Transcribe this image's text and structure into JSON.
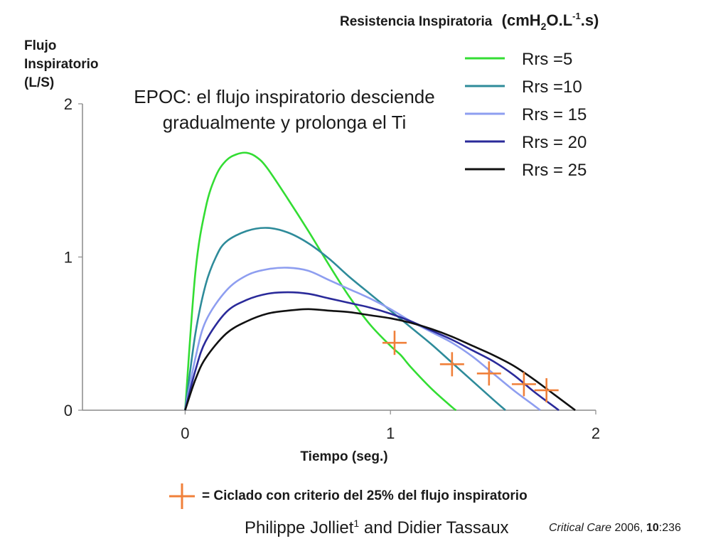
{
  "chart_data": {
    "type": "line",
    "title": "EPOC: el flujo inspiratorio desciende gradualmente y prolonga el Ti",
    "ylabel_lines": [
      "Flujo",
      "Inspiratorio",
      "(L/S)"
    ],
    "xlabel": "Tiempo (seg.)",
    "xlim": [
      -0.5,
      2
    ],
    "ylim": [
      0,
      2
    ],
    "x_ticks": [
      "0",
      "1",
      "2"
    ],
    "y_ticks": [
      "0",
      "1",
      "2"
    ],
    "legend": {
      "title": "Resistencia Inspiratoria",
      "unit_prefix": "(cmH",
      "unit_sub": "2",
      "unit_mid": "O.L",
      "unit_sup": "-1",
      "unit_suffix": ".s)",
      "placement": "top-right"
    },
    "series": [
      {
        "name": "Rrs =5",
        "color": "#33dd33",
        "points": [
          [
            0,
            0
          ],
          [
            0.05,
            0.9
          ],
          [
            0.1,
            1.32
          ],
          [
            0.15,
            1.53
          ],
          [
            0.2,
            1.63
          ],
          [
            0.25,
            1.67
          ],
          [
            0.3,
            1.68
          ],
          [
            0.35,
            1.65
          ],
          [
            0.4,
            1.58
          ],
          [
            0.5,
            1.38
          ],
          [
            0.6,
            1.17
          ],
          [
            0.7,
            0.95
          ],
          [
            0.8,
            0.74
          ],
          [
            0.9,
            0.56
          ],
          [
            1.0,
            0.42
          ],
          [
            1.05,
            0.36
          ],
          [
            1.1,
            0.28
          ],
          [
            1.2,
            0.14
          ],
          [
            1.3,
            0.02
          ],
          [
            1.32,
            0
          ]
        ],
        "cycle_marker": [
          1.02,
          0.44
        ]
      },
      {
        "name": "Rrs =10",
        "color": "#2e8b9a",
        "points": [
          [
            0,
            0
          ],
          [
            0.05,
            0.5
          ],
          [
            0.1,
            0.82
          ],
          [
            0.15,
            1.0
          ],
          [
            0.2,
            1.1
          ],
          [
            0.3,
            1.17
          ],
          [
            0.4,
            1.19
          ],
          [
            0.5,
            1.16
          ],
          [
            0.6,
            1.09
          ],
          [
            0.7,
            0.99
          ],
          [
            0.8,
            0.87
          ],
          [
            0.9,
            0.76
          ],
          [
            1.0,
            0.65
          ],
          [
            1.1,
            0.54
          ],
          [
            1.2,
            0.43
          ],
          [
            1.3,
            0.31
          ],
          [
            1.4,
            0.19
          ],
          [
            1.5,
            0.07
          ],
          [
            1.56,
            0
          ]
        ],
        "cycle_marker": [
          1.3,
          0.3
        ]
      },
      {
        "name": "Rrs = 15",
        "color": "#8e9ef0",
        "points": [
          [
            0,
            0
          ],
          [
            0.05,
            0.34
          ],
          [
            0.1,
            0.58
          ],
          [
            0.2,
            0.78
          ],
          [
            0.3,
            0.88
          ],
          [
            0.4,
            0.92
          ],
          [
            0.5,
            0.93
          ],
          [
            0.6,
            0.91
          ],
          [
            0.7,
            0.85
          ],
          [
            0.8,
            0.79
          ],
          [
            0.9,
            0.73
          ],
          [
            1.0,
            0.66
          ],
          [
            1.1,
            0.58
          ],
          [
            1.2,
            0.51
          ],
          [
            1.3,
            0.44
          ],
          [
            1.4,
            0.35
          ],
          [
            1.5,
            0.24
          ],
          [
            1.6,
            0.13
          ],
          [
            1.7,
            0.03
          ],
          [
            1.73,
            0
          ]
        ],
        "cycle_marker": [
          1.48,
          0.24
        ]
      },
      {
        "name": "Rrs = 20",
        "color": "#2a2a9a",
        "points": [
          [
            0,
            0
          ],
          [
            0.05,
            0.26
          ],
          [
            0.1,
            0.45
          ],
          [
            0.2,
            0.64
          ],
          [
            0.3,
            0.72
          ],
          [
            0.4,
            0.76
          ],
          [
            0.5,
            0.77
          ],
          [
            0.6,
            0.76
          ],
          [
            0.7,
            0.73
          ],
          [
            0.8,
            0.7
          ],
          [
            0.9,
            0.67
          ],
          [
            1.0,
            0.63
          ],
          [
            1.1,
            0.58
          ],
          [
            1.2,
            0.52
          ],
          [
            1.3,
            0.46
          ],
          [
            1.4,
            0.39
          ],
          [
            1.5,
            0.32
          ],
          [
            1.6,
            0.23
          ],
          [
            1.7,
            0.12
          ],
          [
            1.8,
            0.02
          ],
          [
            1.82,
            0
          ]
        ],
        "cycle_marker": [
          1.65,
          0.17
        ]
      },
      {
        "name": "Rrs = 25",
        "color": "#111111",
        "points": [
          [
            0,
            0
          ],
          [
            0.05,
            0.2
          ],
          [
            0.1,
            0.34
          ],
          [
            0.2,
            0.5
          ],
          [
            0.3,
            0.58
          ],
          [
            0.4,
            0.63
          ],
          [
            0.5,
            0.65
          ],
          [
            0.6,
            0.66
          ],
          [
            0.7,
            0.65
          ],
          [
            0.8,
            0.64
          ],
          [
            0.9,
            0.62
          ],
          [
            1.0,
            0.6
          ],
          [
            1.1,
            0.57
          ],
          [
            1.2,
            0.53
          ],
          [
            1.3,
            0.48
          ],
          [
            1.4,
            0.42
          ],
          [
            1.5,
            0.36
          ],
          [
            1.6,
            0.29
          ],
          [
            1.7,
            0.2
          ],
          [
            1.8,
            0.1
          ],
          [
            1.88,
            0.02
          ],
          [
            1.9,
            0
          ]
        ],
        "cycle_marker": [
          1.76,
          0.13
        ]
      }
    ],
    "marker_color": "#f0803a",
    "marker_note": "= Ciclado con criterio del 25% del flujo inspiratorio"
  },
  "citation": {
    "authors_first": "Philippe Jolliet",
    "authors_first_sup": "1",
    "authors_rest": " and Didier Tassaux",
    "journal_italic": "Critical Care",
    "journal_year": " 2006, ",
    "journal_volume": "10",
    "journal_pages": ":236"
  }
}
